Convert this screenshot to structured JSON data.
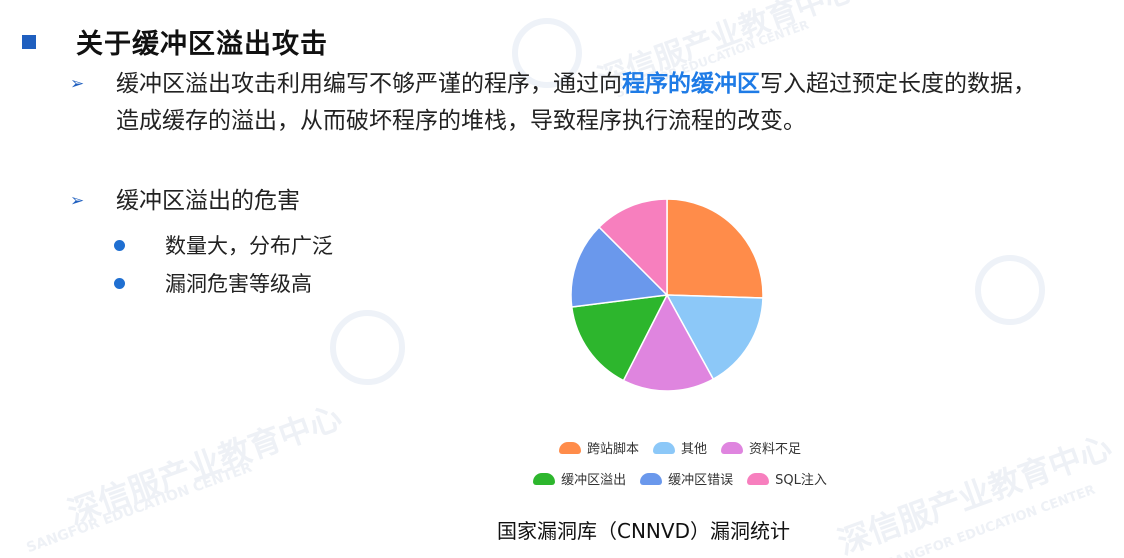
{
  "slide": {
    "title": "关于缓冲区溢出攻击",
    "bullets": {
      "b1_before": "缓冲区溢出攻击利用编写不够严谨的程序，通过向",
      "b1_highlight": "程序的缓冲区",
      "b1_after": "写入超过预定长度的数据，造成缓存的溢出，从而破坏程序的堆栈，导致程序执行流程的改变。",
      "b2": "缓冲区溢出的危害",
      "sub1": "数量大，分布广泛",
      "sub2": "漏洞危害等级高"
    },
    "caption": "国家漏洞库（CNNVD）漏洞统计",
    "watermark": "深信服产业教育中心",
    "watermark_en": "SANGFOR EDUCATION CENTER"
  },
  "chart_data": {
    "type": "pie",
    "categories": [
      "跨站脚本",
      "其他",
      "资料不足",
      "缓冲区溢出",
      "缓冲区错误",
      "SQL注入"
    ],
    "values": [
      25.5,
      16.5,
      15.5,
      15.5,
      14.5,
      12.5
    ],
    "colors": [
      "#ff8c4a",
      "#8cc8f8",
      "#df85df",
      "#2db62d",
      "#6a98ec",
      "#f77fbe"
    ],
    "legend_position": "bottom"
  }
}
